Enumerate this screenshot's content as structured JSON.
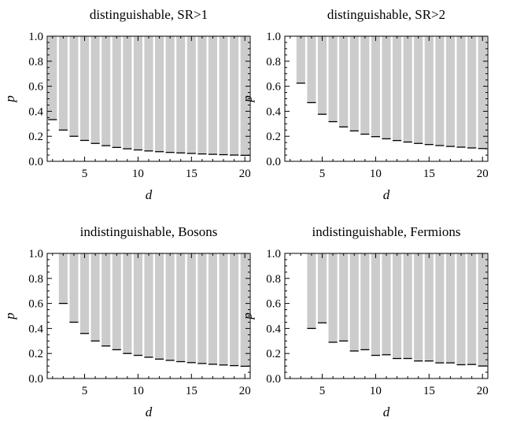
{
  "figure": {
    "colors": {
      "bar_fill": "#cccccc",
      "bar_top": "#000000",
      "axis": "#000000",
      "background": "#ffffff"
    }
  },
  "chart_data": [
    {
      "type": "bar",
      "title": "distinguishable, SR>1",
      "xlabel": "d",
      "ylabel": "p",
      "xlim": [
        1.5,
        20.5
      ],
      "ylim": [
        0,
        1
      ],
      "xticks": [
        "5",
        "10",
        "15",
        "20"
      ],
      "yticks": [
        "0.0",
        "0.2",
        "0.4",
        "0.6",
        "0.8",
        "1.0"
      ],
      "x": [
        2,
        3,
        4,
        5,
        6,
        7,
        8,
        9,
        10,
        11,
        12,
        13,
        14,
        15,
        16,
        17,
        18,
        19,
        20
      ],
      "values": [
        0.333,
        0.25,
        0.2,
        0.167,
        0.143,
        0.125,
        0.111,
        0.1,
        0.091,
        0.083,
        0.077,
        0.071,
        0.067,
        0.063,
        0.059,
        0.056,
        0.053,
        0.05,
        0.048
      ],
      "grid": false
    },
    {
      "type": "bar",
      "title": "distinguishable, SR>2",
      "xlabel": "d",
      "ylabel": "p",
      "xlim": [
        1.5,
        20.5
      ],
      "ylim": [
        0,
        1
      ],
      "xticks": [
        "5",
        "10",
        "15",
        "20"
      ],
      "yticks": [
        "0.0",
        "0.2",
        "0.4",
        "0.6",
        "0.8",
        "1.0"
      ],
      "x": [
        3,
        4,
        5,
        6,
        7,
        8,
        9,
        10,
        11,
        12,
        13,
        14,
        15,
        16,
        17,
        18,
        19,
        20
      ],
      "values": [
        0.625,
        0.469,
        0.376,
        0.317,
        0.275,
        0.243,
        0.217,
        0.197,
        0.18,
        0.166,
        0.154,
        0.143,
        0.134,
        0.126,
        0.119,
        0.113,
        0.107,
        0.102
      ],
      "grid": false
    },
    {
      "type": "bar",
      "title": "indistinguishable, Bosons",
      "xlabel": "d",
      "ylabel": "p",
      "xlim": [
        1.5,
        20.5
      ],
      "ylim": [
        0,
        1
      ],
      "xticks": [
        "5",
        "10",
        "15",
        "20"
      ],
      "yticks": [
        "0.0",
        "0.2",
        "0.4",
        "0.6",
        "0.8",
        "1.0"
      ],
      "x": [
        3,
        4,
        5,
        6,
        7,
        8,
        9,
        10,
        11,
        12,
        13,
        14,
        15,
        16,
        17,
        18,
        19,
        20
      ],
      "values": [
        0.6,
        0.45,
        0.36,
        0.3,
        0.26,
        0.23,
        0.2,
        0.185,
        0.17,
        0.155,
        0.145,
        0.135,
        0.127,
        0.12,
        0.114,
        0.108,
        0.103,
        0.098
      ],
      "grid": false
    },
    {
      "type": "bar",
      "title": "indistinguishable, Fermions",
      "xlabel": "d",
      "ylabel": "p",
      "xlim": [
        1.5,
        20.5
      ],
      "ylim": [
        0,
        1
      ],
      "xticks": [
        "5",
        "10",
        "15",
        "20"
      ],
      "yticks": [
        "0.0",
        "0.2",
        "0.4",
        "0.6",
        "0.8",
        "1.0"
      ],
      "x": [
        4,
        5,
        6,
        7,
        8,
        9,
        10,
        11,
        12,
        13,
        14,
        15,
        16,
        17,
        18,
        19,
        20
      ],
      "values": [
        0.4,
        0.445,
        0.29,
        0.3,
        0.22,
        0.23,
        0.185,
        0.19,
        0.16,
        0.16,
        0.14,
        0.14,
        0.125,
        0.125,
        0.11,
        0.112,
        0.1
      ],
      "grid": false
    }
  ]
}
